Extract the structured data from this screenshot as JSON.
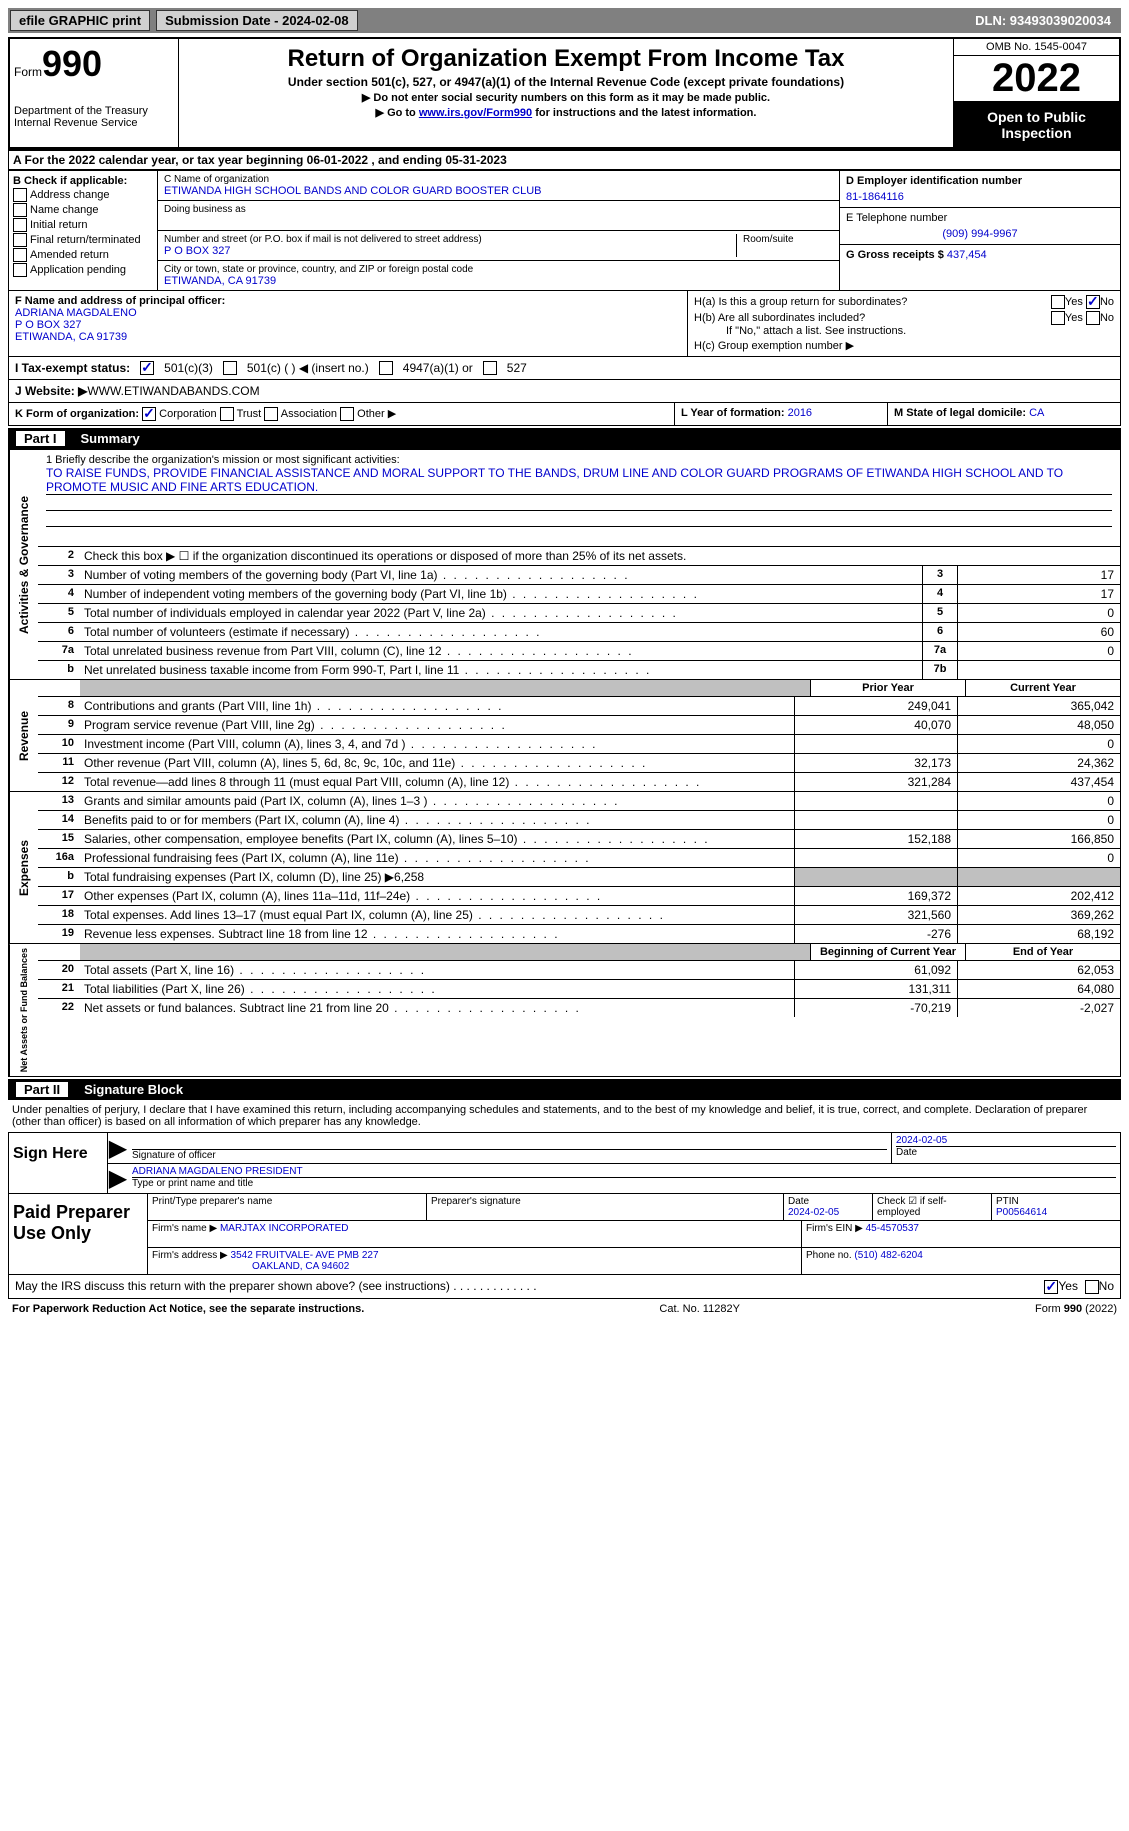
{
  "topbar": {
    "efile": "efile GRAPHIC print",
    "submission": "Submission Date - 2024-02-08",
    "dln": "DLN: 93493039020034"
  },
  "header": {
    "form_label": "Form",
    "form_number": "990",
    "dept": "Department of the Treasury Internal Revenue Service",
    "title": "Return of Organization Exempt From Income Tax",
    "subtitle": "Under section 501(c), 527, or 4947(a)(1) of the Internal Revenue Code (except private foundations)",
    "note1": "▶ Do not enter social security numbers on this form as it may be made public.",
    "note2_prefix": "▶ Go to ",
    "note2_link": "www.irs.gov/Form990",
    "note2_suffix": " for instructions and the latest information.",
    "omb": "OMB No. 1545-0047",
    "year": "2022",
    "open": "Open to Public Inspection"
  },
  "section_a": "A For the 2022 calendar year, or tax year beginning 06-01-2022    , and ending 05-31-2023",
  "col_b": {
    "label": "B Check if applicable:",
    "items": [
      "Address change",
      "Name change",
      "Initial return",
      "Final return/terminated",
      "Amended return",
      "Application pending"
    ]
  },
  "col_c": {
    "name_label": "C Name of organization",
    "name": "ETIWANDA HIGH SCHOOL BANDS AND COLOR GUARD BOOSTER CLUB",
    "dba_label": "Doing business as",
    "addr_label": "Number and street (or P.O. box if mail is not delivered to street address)",
    "addr": "P O BOX 327",
    "room_label": "Room/suite",
    "city_label": "City or town, state or province, country, and ZIP or foreign postal code",
    "city": "ETIWANDA, CA  91739"
  },
  "col_d": {
    "ein_label": "D Employer identification number",
    "ein": "81-1864116",
    "phone_label": "E Telephone number",
    "phone": "(909) 994-9967",
    "gross_label": "G Gross receipts $",
    "gross": "437,454"
  },
  "officer": {
    "label": "F  Name and address of principal officer:",
    "name": "ADRIANA MAGDALENO",
    "addr1": "P O BOX 327",
    "addr2": "ETIWANDA, CA  91739"
  },
  "h_block": {
    "ha": "H(a)  Is this a group return for subordinates?",
    "hb": "H(b)  Are all subordinates included?",
    "hb_note": "If \"No,\" attach a list. See instructions.",
    "hc": "H(c)  Group exemption number ▶"
  },
  "row_i": {
    "label": "I  Tax-exempt status:",
    "opt1": "501(c)(3)",
    "opt2": "501(c) (  ) ◀ (insert no.)",
    "opt3": "4947(a)(1) or",
    "opt4": "527"
  },
  "row_j": {
    "label": "J  Website: ▶",
    "value": "  WWW.ETIWANDABANDS.COM"
  },
  "row_k": {
    "k_label": "K Form of organization:",
    "corp": "Corporation",
    "trust": "Trust",
    "assoc": "Association",
    "other": "Other ▶",
    "l_label": "L Year of formation:",
    "l_val": "2016",
    "m_label": "M State of legal domicile:",
    "m_val": "CA"
  },
  "part1": {
    "label": "Part I",
    "title": "Summary"
  },
  "mission": {
    "label": "1   Briefly describe the organization's mission or most significant activities:",
    "text": "TO RAISE FUNDS, PROVIDE FINANCIAL ASSISTANCE AND MORAL SUPPORT TO THE BANDS, DRUM LINE AND COLOR GUARD PROGRAMS OF ETIWANDA HIGH SCHOOL AND TO PROMOTE MUSIC AND FINE ARTS EDUCATION."
  },
  "activities": {
    "line2": "Check this box ▶ ☐ if the organization discontinued its operations or disposed of more than 25% of its net assets.",
    "rows": [
      {
        "n": "3",
        "d": "Number of voting members of the governing body (Part VI, line 1a)",
        "box": "3",
        "v": "17"
      },
      {
        "n": "4",
        "d": "Number of independent voting members of the governing body (Part VI, line 1b)",
        "box": "4",
        "v": "17"
      },
      {
        "n": "5",
        "d": "Total number of individuals employed in calendar year 2022 (Part V, line 2a)",
        "box": "5",
        "v": "0"
      },
      {
        "n": "6",
        "d": "Total number of volunteers (estimate if necessary)",
        "box": "6",
        "v": "60"
      },
      {
        "n": "7a",
        "d": "Total unrelated business revenue from Part VIII, column (C), line 12",
        "box": "7a",
        "v": "0"
      },
      {
        "n": "b",
        "d": "Net unrelated business taxable income from Form 990-T, Part I, line 11",
        "box": "7b",
        "v": ""
      }
    ]
  },
  "revenue": {
    "header_prior": "Prior Year",
    "header_current": "Current Year",
    "rows": [
      {
        "n": "8",
        "d": "Contributions and grants (Part VIII, line 1h)",
        "prior": "249,041",
        "curr": "365,042"
      },
      {
        "n": "9",
        "d": "Program service revenue (Part VIII, line 2g)",
        "prior": "40,070",
        "curr": "48,050"
      },
      {
        "n": "10",
        "d": "Investment income (Part VIII, column (A), lines 3, 4, and 7d )",
        "prior": "",
        "curr": "0"
      },
      {
        "n": "11",
        "d": "Other revenue (Part VIII, column (A), lines 5, 6d, 8c, 9c, 10c, and 11e)",
        "prior": "32,173",
        "curr": "24,362"
      },
      {
        "n": "12",
        "d": "Total revenue—add lines 8 through 11 (must equal Part VIII, column (A), line 12)",
        "prior": "321,284",
        "curr": "437,454"
      }
    ]
  },
  "expenses": {
    "rows": [
      {
        "n": "13",
        "d": "Grants and similar amounts paid (Part IX, column (A), lines 1–3 )",
        "prior": "",
        "curr": "0"
      },
      {
        "n": "14",
        "d": "Benefits paid to or for members (Part IX, column (A), line 4)",
        "prior": "",
        "curr": "0"
      },
      {
        "n": "15",
        "d": "Salaries, other compensation, employee benefits (Part IX, column (A), lines 5–10)",
        "prior": "152,188",
        "curr": "166,850"
      },
      {
        "n": "16a",
        "d": "Professional fundraising fees (Part IX, column (A), line 11e)",
        "prior": "",
        "curr": "0"
      },
      {
        "n": "b",
        "d": "Total fundraising expenses (Part IX, column (D), line 25) ▶6,258",
        "prior": "—shaded—",
        "curr": "—shaded—"
      },
      {
        "n": "17",
        "d": "Other expenses (Part IX, column (A), lines 11a–11d, 11f–24e)",
        "prior": "169,372",
        "curr": "202,412"
      },
      {
        "n": "18",
        "d": "Total expenses. Add lines 13–17 (must equal Part IX, column (A), line 25)",
        "prior": "321,560",
        "curr": "369,262"
      },
      {
        "n": "19",
        "d": "Revenue less expenses. Subtract line 18 from line 12",
        "prior": "-276",
        "curr": "68,192"
      }
    ]
  },
  "netassets": {
    "header_beg": "Beginning of Current Year",
    "header_end": "End of Year",
    "rows": [
      {
        "n": "20",
        "d": "Total assets (Part X, line 16)",
        "prior": "61,092",
        "curr": "62,053"
      },
      {
        "n": "21",
        "d": "Total liabilities (Part X, line 26)",
        "prior": "131,311",
        "curr": "64,080"
      },
      {
        "n": "22",
        "d": "Net assets or fund balances. Subtract line 21 from line 20",
        "prior": "-70,219",
        "curr": "-2,027"
      }
    ]
  },
  "part2": {
    "label": "Part II",
    "title": "Signature Block"
  },
  "sig": {
    "text": "Under penalties of perjury, I declare that I have examined this return, including accompanying schedules and statements, and to the best of my knowledge and belief, it is true, correct, and complete. Declaration of preparer (other than officer) is based on all information of which preparer has any knowledge.",
    "sign_here": "Sign Here",
    "officer_sig": "Signature of officer",
    "date": "2024-02-05",
    "date_label": "Date",
    "officer_name": "ADRIANA MAGDALENO  PRESIDENT",
    "name_label": "Type or print name and title"
  },
  "paid": {
    "label": "Paid Preparer Use Only",
    "prep_name_label": "Print/Type preparer's name",
    "prep_sig_label": "Preparer's signature",
    "date_label": "Date",
    "date": "2024-02-05",
    "check_label": "Check ☑ if self-employed",
    "ptin_label": "PTIN",
    "ptin": "P00564614",
    "firm_name_label": "Firm's name    ▶",
    "firm_name": "MARJTAX INCORPORATED",
    "firm_ein_label": "Firm's EIN ▶",
    "firm_ein": "45-4570537",
    "firm_addr_label": "Firm's address ▶",
    "firm_addr1": "3542 FRUITVALE- AVE PMB 227",
    "firm_addr2": "OAKLAND, CA  94602",
    "phone_label": "Phone no.",
    "phone": "(510) 482-6204"
  },
  "discuss": "May the IRS discuss this return with the preparer shown above? (see instructions)",
  "footer": {
    "left": "For Paperwork Reduction Act Notice, see the separate instructions.",
    "mid": "Cat. No. 11282Y",
    "right": "Form 990 (2022)"
  },
  "labels": {
    "activities_governance": "Activities & Governance",
    "revenue": "Revenue",
    "expenses": "Expenses",
    "netassets": "Net Assets or Fund Balances",
    "yes": "Yes",
    "no": "No"
  }
}
